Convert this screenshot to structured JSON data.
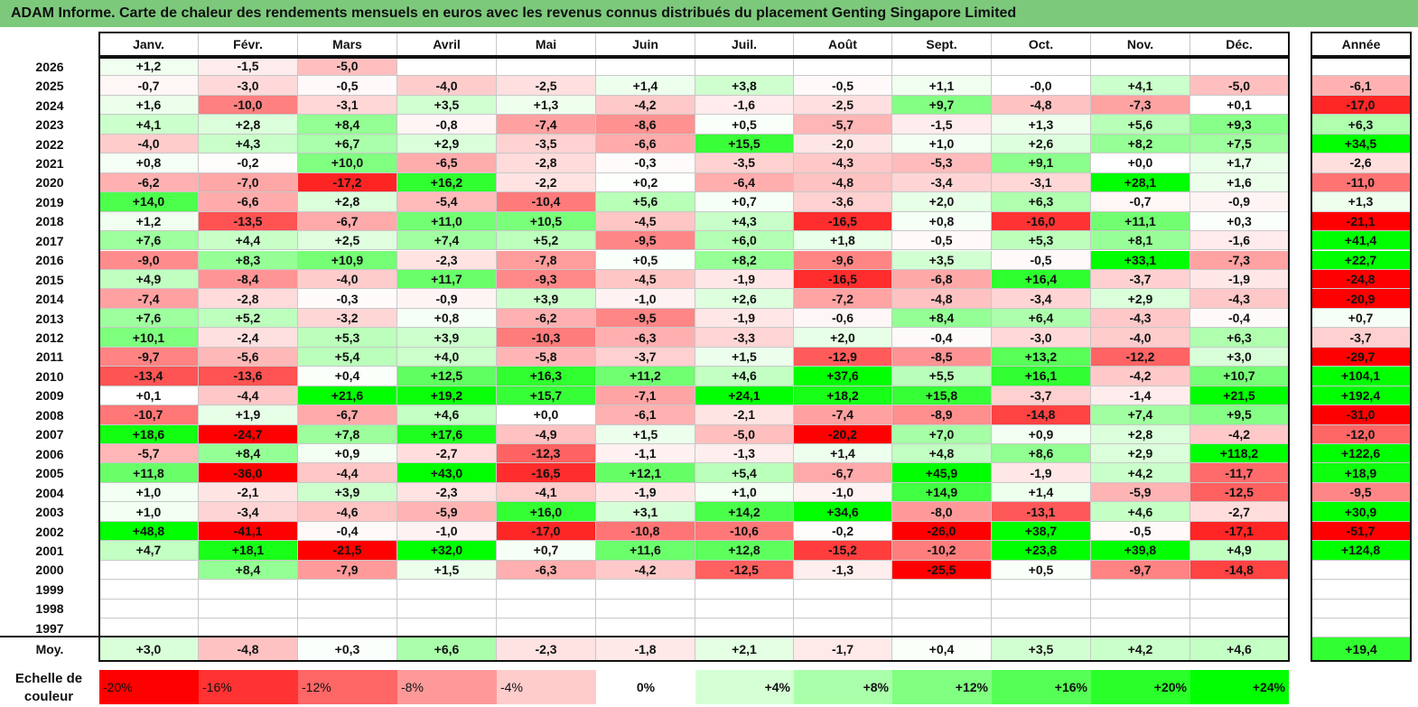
{
  "title": "ADAM Informe. Carte de chaleur des rendements mensuels en euros avec les revenus connus distribués du placement Genting Singapore Limited",
  "colors": {
    "title_bg": "#7cc97c",
    "negative": "#ff0000",
    "positive": "#00ff00",
    "neutral": "#ffffff"
  },
  "legend": {
    "label_line1": "Echelle de",
    "label_line2": "couleur",
    "scale": [
      "-20%",
      "-16%",
      "-12%",
      "-8%",
      "-4%",
      "0%",
      "+4%",
      "+8%",
      "+12%",
      "+16%",
      "+20%",
      "+24%"
    ]
  },
  "chart_data": {
    "type": "heatmap",
    "months": [
      "Janv.",
      "Févr.",
      "Mars",
      "Avril",
      "Mai",
      "Juin",
      "Juil.",
      "Août",
      "Sept.",
      "Oct.",
      "Nov.",
      "Déc."
    ],
    "year_header": "Année",
    "years": [
      "2026",
      "2025",
      "2024",
      "2023",
      "2022",
      "2021",
      "2020",
      "2019",
      "2018",
      "2017",
      "2016",
      "2015",
      "2014",
      "2013",
      "2012",
      "2011",
      "2010",
      "2009",
      "2008",
      "2007",
      "2006",
      "2005",
      "2004",
      "2003",
      "2002",
      "2001",
      "2000",
      "1999",
      "1998",
      "1997"
    ],
    "values": [
      [
        "+1,2",
        "-1,5",
        "-5,0",
        "",
        "",
        "",
        "",
        "",
        "",
        "",
        "",
        ""
      ],
      [
        "-0,7",
        "-3,0",
        "-0,5",
        "-4,0",
        "-2,5",
        "+1,4",
        "+3,8",
        "-0,5",
        "+1,1",
        "-0,0",
        "+4,1",
        "-5,0"
      ],
      [
        "+1,6",
        "-10,0",
        "-3,1",
        "+3,5",
        "+1,3",
        "-4,2",
        "-1,6",
        "-2,5",
        "+9,7",
        "-4,8",
        "-7,3",
        "+0,1"
      ],
      [
        "+4,1",
        "+2,8",
        "+8,4",
        "-0,8",
        "-7,4",
        "-8,6",
        "+0,5",
        "-5,7",
        "-1,5",
        "+1,3",
        "+5,6",
        "+9,3"
      ],
      [
        "-4,0",
        "+4,3",
        "+6,7",
        "+2,9",
        "-3,5",
        "-6,6",
        "+15,5",
        "-2,0",
        "+1,0",
        "+2,6",
        "+8,2",
        "+7,5"
      ],
      [
        "+0,8",
        "-0,2",
        "+10,0",
        "-6,5",
        "-2,8",
        "-0,3",
        "-3,5",
        "-4,3",
        "-5,3",
        "+9,1",
        "+0,0",
        "+1,7"
      ],
      [
        "-6,2",
        "-7,0",
        "-17,2",
        "+16,2",
        "-2,2",
        "+0,2",
        "-6,4",
        "-4,8",
        "-3,4",
        "-3,1",
        "+28,1",
        "+1,6"
      ],
      [
        "+14,0",
        "-6,6",
        "+2,8",
        "-5,4",
        "-10,4",
        "+5,6",
        "+0,7",
        "-3,6",
        "+2,0",
        "+6,3",
        "-0,7",
        "-0,9"
      ],
      [
        "+1,2",
        "-13,5",
        "-6,7",
        "+11,0",
        "+10,5",
        "-4,5",
        "+4,3",
        "-16,5",
        "+0,8",
        "-16,0",
        "+11,1",
        "+0,3"
      ],
      [
        "+7,6",
        "+4,4",
        "+2,5",
        "+7,4",
        "+5,2",
        "-9,5",
        "+6,0",
        "+1,8",
        "-0,5",
        "+5,3",
        "+8,1",
        "-1,6"
      ],
      [
        "-9,0",
        "+8,3",
        "+10,9",
        "-2,3",
        "-7,8",
        "+0,5",
        "+8,2",
        "-9,6",
        "+3,5",
        "-0,5",
        "+33,1",
        "-7,3"
      ],
      [
        "+4,9",
        "-8,4",
        "-4,0",
        "+11,7",
        "-9,3",
        "-4,5",
        "-1,9",
        "-16,5",
        "-6,8",
        "+16,4",
        "-3,7",
        "-1,9"
      ],
      [
        "-7,4",
        "-2,8",
        "-0,3",
        "-0,9",
        "+3,9",
        "-1,0",
        "+2,6",
        "-7,2",
        "-4,8",
        "-3,4",
        "+2,9",
        "-4,3"
      ],
      [
        "+7,6",
        "+5,2",
        "-3,2",
        "+0,8",
        "-6,2",
        "-9,5",
        "-1,9",
        "-0,6",
        "+8,4",
        "+6,4",
        "-4,3",
        "-0,4"
      ],
      [
        "+10,1",
        "-2,4",
        "+5,3",
        "+3,9",
        "-10,3",
        "-6,3",
        "-3,3",
        "+2,0",
        "-0,4",
        "-3,0",
        "-4,0",
        "+6,3"
      ],
      [
        "-9,7",
        "-5,6",
        "+5,4",
        "+4,0",
        "-5,8",
        "-3,7",
        "+1,5",
        "-12,9",
        "-8,5",
        "+13,2",
        "-12,2",
        "+3,0"
      ],
      [
        "-13,4",
        "-13,6",
        "+0,4",
        "+12,5",
        "+16,3",
        "+11,2",
        "+4,6",
        "+37,6",
        "+5,5",
        "+16,1",
        "-4,2",
        "+10,7"
      ],
      [
        "+0,1",
        "-4,4",
        "+21,6",
        "+19,2",
        "+15,7",
        "-7,1",
        "+24,1",
        "+18,2",
        "+15,8",
        "-3,7",
        "-1,4",
        "+21,5"
      ],
      [
        "-10,7",
        "+1,9",
        "-6,7",
        "+4,6",
        "+0,0",
        "-6,1",
        "-2,1",
        "-7,4",
        "-8,9",
        "-14,8",
        "+7,4",
        "+9,5"
      ],
      [
        "+18,6",
        "-24,7",
        "+7,8",
        "+17,6",
        "-4,9",
        "+1,5",
        "-5,0",
        "-20,2",
        "+7,0",
        "+0,9",
        "+2,8",
        "-4,2"
      ],
      [
        "-5,7",
        "+8,4",
        "+0,9",
        "-2,7",
        "-12,3",
        "-1,1",
        "-1,3",
        "+1,4",
        "+4,8",
        "+8,6",
        "+2,9",
        "+118,2"
      ],
      [
        "+11,8",
        "-36,0",
        "-4,4",
        "+43,0",
        "-16,5",
        "+12,1",
        "+5,4",
        "-6,7",
        "+45,9",
        "-1,9",
        "+4,2",
        "-11,7"
      ],
      [
        "+1,0",
        "-2,1",
        "+3,9",
        "-2,3",
        "-4,1",
        "-1,9",
        "+1,0",
        "-1,0",
        "+14,9",
        "+1,4",
        "-5,9",
        "-12,5"
      ],
      [
        "+1,0",
        "-3,4",
        "-4,6",
        "-5,9",
        "+16,0",
        "+3,1",
        "+14,2",
        "+34,6",
        "-8,0",
        "-13,1",
        "+4,6",
        "-2,7"
      ],
      [
        "+48,8",
        "-41,1",
        "-0,4",
        "-1,0",
        "-17,0",
        "-10,8",
        "-10,6",
        "-0,2",
        "-26,0",
        "+38,7",
        "-0,5",
        "-17,1"
      ],
      [
        "+4,7",
        "+18,1",
        "-21,5",
        "+32,0",
        "+0,7",
        "+11,6",
        "+12,8",
        "-15,2",
        "-10,2",
        "+23,8",
        "+39,8",
        "+4,9"
      ],
      [
        "",
        "+8,4",
        "-7,9",
        "+1,5",
        "-6,3",
        "-4,2",
        "-12,5",
        "-1,3",
        "-25,5",
        "+0,5",
        "-9,7",
        "-14,8"
      ],
      [
        "",
        "",
        "",
        "",
        "",
        "",
        "",
        "",
        "",
        "",
        "",
        ""
      ],
      [
        "",
        "",
        "",
        "",
        "",
        "",
        "",
        "",
        "",
        "",
        "",
        ""
      ],
      [
        "",
        "",
        "",
        "",
        "",
        "",
        "",
        "",
        "",
        "",
        "",
        ""
      ]
    ],
    "annual": [
      "",
      "-6,1",
      "-17,0",
      "+6,3",
      "+34,5",
      "-2,6",
      "-11,0",
      "+1,3",
      "-21,1",
      "+41,4",
      "+22,7",
      "-24,8",
      "-20,9",
      "+0,7",
      "-3,7",
      "-29,7",
      "+104,1",
      "+192,4",
      "-31,0",
      "-12,0",
      "+122,6",
      "+18,9",
      "-9,5",
      "+30,9",
      "-51,7",
      "+124,8",
      "",
      "",
      "",
      ""
    ],
    "average_label": "Moy.",
    "average": [
      "+3,0",
      "-4,8",
      "+0,3",
      "+6,6",
      "-2,3",
      "-1,8",
      "+2,1",
      "-1,7",
      "+0,4",
      "+3,5",
      "+4,2",
      "+4,6"
    ],
    "average_annual": "+19,4",
    "color_scale_percent": [
      -20,
      24
    ]
  }
}
